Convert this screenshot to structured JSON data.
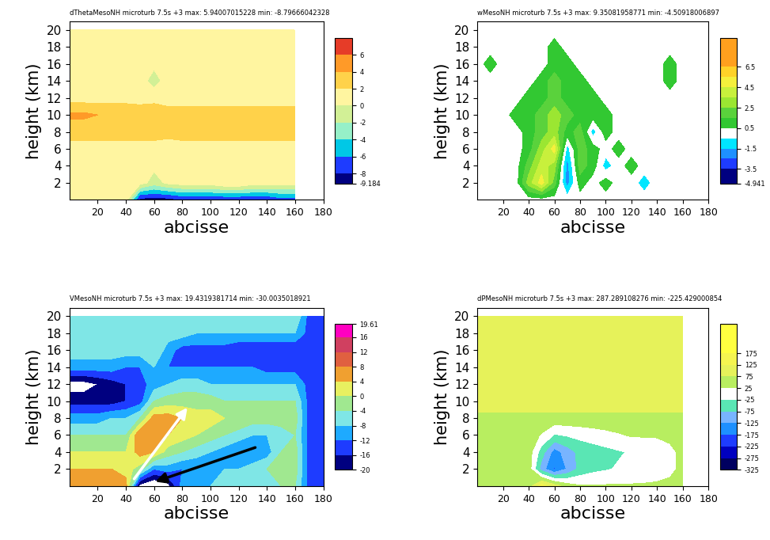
{
  "chart_data": [
    {
      "type": "contour",
      "title": "dThetaMesoNH microturb 7.5s +3 max: 5.94007015228 min: -8.79666042328",
      "x_label": "abcisse",
      "y_label": "height (km)",
      "x": [
        0,
        10,
        20,
        30,
        40,
        50,
        60,
        70,
        80,
        90,
        100,
        110,
        120,
        130,
        140,
        150,
        160,
        170,
        180
      ],
      "y": [
        0,
        2,
        4,
        6,
        8,
        10,
        12,
        14,
        16,
        18,
        20
      ],
      "cells": [
        [
          1,
          1,
          1,
          1,
          1,
          -9,
          -9,
          -9,
          -8,
          -8,
          -8,
          -8,
          -8,
          -8,
          -8,
          -7,
          -7,
          null,
          null
        ],
        [
          1,
          1,
          1,
          1,
          1,
          1,
          -1,
          0.5,
          1,
          1,
          1,
          2,
          2,
          1,
          1,
          1,
          1,
          null,
          null
        ],
        [
          1,
          1,
          1,
          1,
          1,
          1,
          0.5,
          0.5,
          0.5,
          1,
          1,
          1,
          1,
          1,
          1,
          1,
          1,
          null,
          null
        ],
        [
          1.5,
          1.5,
          1.5,
          1.5,
          1.5,
          1.5,
          1,
          0.5,
          1,
          1,
          1,
          1,
          1,
          1,
          1,
          1,
          1,
          null,
          null
        ],
        [
          2.5,
          2.5,
          2.5,
          2.5,
          2.5,
          2.5,
          3,
          3,
          3,
          3,
          3,
          3,
          3,
          3,
          3,
          3,
          3,
          null,
          null
        ],
        [
          4.5,
          4.5,
          4,
          4,
          4,
          3.5,
          3,
          3,
          3,
          3,
          3,
          3,
          3,
          3,
          3,
          3,
          3,
          null,
          null
        ],
        [
          1,
          1,
          1,
          1,
          1,
          1,
          1.5,
          1,
          1,
          1,
          1,
          1,
          1,
          1,
          1,
          1,
          1,
          null,
          null
        ],
        [
          1,
          1,
          0.5,
          1,
          1,
          1,
          -1,
          1,
          1,
          1,
          1,
          1,
          0.5,
          0.5,
          1,
          1,
          1,
          null,
          null
        ],
        [
          0.5,
          0.5,
          0.5,
          0.5,
          0.5,
          0.5,
          0.5,
          1,
          0.5,
          0.5,
          0.5,
          0.5,
          0.5,
          0.5,
          0.5,
          0.5,
          0.5,
          null,
          null
        ],
        [
          0.5,
          0.5,
          0.5,
          0.5,
          0.5,
          0.5,
          0.5,
          0.5,
          0.5,
          0.5,
          0.5,
          0.5,
          0.5,
          0.5,
          0.5,
          0.5,
          0.5,
          null,
          null
        ],
        [
          0.5,
          0.5,
          0.5,
          0.5,
          0.5,
          0.5,
          0.5,
          0.5,
          0.5,
          0.5,
          0.5,
          0.5,
          0.5,
          0.5,
          0.5,
          0.5,
          0.5,
          null,
          null
        ]
      ],
      "xlim": [
        0,
        180
      ],
      "ylim": [
        0,
        21
      ],
      "xticks": [
        20,
        40,
        60,
        80,
        100,
        120,
        140,
        160,
        180
      ],
      "yticks": [
        2,
        4,
        6,
        8,
        10,
        12,
        14,
        16,
        18,
        20
      ],
      "levels": [
        -9.184,
        -8,
        -6,
        -4,
        -2,
        0,
        2,
        4,
        6,
        8
      ],
      "colors": [
        "#000080",
        "#1e3cff",
        "#00c8e6",
        "#96f0c8",
        "#d2f096",
        "#fff5a0",
        "#ffd24a",
        "#ff9a28",
        "#e63c28"
      ],
      "colorbar_ticks": [
        -9.184,
        -8,
        -6,
        -4,
        -2,
        0,
        2,
        4,
        6
      ]
    },
    {
      "type": "contour",
      "title": "wMesoNH microturb 7.5s +3 max: 9.35081958771 min: -4.50918006897",
      "x_label": "abcisse",
      "y_label": "height (km)",
      "x": [
        0,
        10,
        20,
        30,
        40,
        50,
        60,
        70,
        80,
        90,
        100,
        110,
        120,
        130,
        140,
        150,
        160,
        170,
        180
      ],
      "y": [
        0,
        2,
        4,
        6,
        8,
        10,
        12,
        14,
        16,
        18,
        20
      ],
      "cells": [
        [
          0,
          0,
          0,
          0,
          0,
          0,
          0,
          0,
          0,
          0,
          0,
          0,
          0,
          0,
          0,
          0,
          0,
          null,
          null
        ],
        [
          0,
          0,
          0,
          0,
          3,
          5,
          2,
          -2,
          1,
          0,
          1,
          0,
          0,
          -1,
          0,
          0,
          0,
          null,
          null
        ],
        [
          0,
          0,
          0,
          0,
          2,
          4,
          3,
          -2,
          2,
          1,
          -1,
          0,
          1,
          0,
          0,
          0,
          0,
          null,
          null
        ],
        [
          0,
          0,
          0,
          0,
          1,
          3,
          5,
          -1,
          2,
          1,
          0,
          1,
          0,
          0,
          0,
          0,
          0,
          null,
          null
        ],
        [
          0,
          0,
          0,
          0,
          1,
          2,
          3,
          1,
          2,
          -1,
          1,
          0,
          0,
          0,
          0,
          0,
          0,
          null,
          null
        ],
        [
          0,
          0,
          0,
          1,
          1,
          2,
          3,
          2,
          1,
          1,
          1,
          0,
          0,
          0,
          0,
          0,
          0,
          null,
          null
        ],
        [
          0,
          0,
          0,
          0,
          1,
          1,
          2,
          1,
          1,
          1,
          0,
          0,
          0,
          0,
          0,
          0,
          0,
          null,
          null
        ],
        [
          0,
          0,
          0,
          0,
          0,
          1,
          2,
          1,
          1,
          0,
          0,
          0,
          0,
          0,
          0,
          1,
          0,
          null,
          null
        ],
        [
          0,
          1,
          0,
          0,
          0,
          0,
          1,
          1,
          0,
          0,
          0,
          0,
          0,
          0,
          0,
          1,
          0,
          null,
          null
        ],
        [
          0,
          0,
          0,
          0,
          0,
          0,
          1,
          0,
          0,
          0,
          0,
          0,
          0,
          0,
          0,
          0,
          0,
          null,
          null
        ],
        [
          0,
          0,
          0,
          0,
          0,
          0,
          0,
          0,
          0,
          0,
          0,
          0,
          0,
          0,
          0,
          0,
          0,
          null,
          null
        ]
      ],
      "xlim": [
        0,
        180
      ],
      "ylim": [
        0,
        21
      ],
      "xticks": [
        20,
        40,
        60,
        80,
        100,
        120,
        140,
        160,
        180
      ],
      "yticks": [
        2,
        4,
        6,
        8,
        10,
        12,
        14,
        16,
        18,
        20
      ],
      "levels": [
        -4.941,
        -3.5,
        -2.5,
        -1.5,
        -0.5,
        0.5,
        1.5,
        2.5,
        3.5,
        4.5,
        5.5,
        6.5,
        9.35
      ],
      "colors": [
        "#000080",
        "#1e3cff",
        "#1e90ff",
        "#00e6ff",
        "#ffffff",
        "#32c832",
        "#5ad23c",
        "#9be632",
        "#c8f03c",
        "#f5f03c",
        "#ffd228",
        "#ffa01e"
      ],
      "colorbar_ticks": [
        -4.941,
        -3.5,
        -1.5,
        0.5,
        2.5,
        4.5,
        6.5
      ]
    },
    {
      "type": "contour",
      "title": "VMesoNH microturb 7.5s +3 max: 19.4319381714 min: -30.0035018921",
      "x_label": "abcisse",
      "y_label": "height (km)",
      "x": [
        0,
        10,
        20,
        30,
        40,
        50,
        60,
        70,
        80,
        90,
        100,
        110,
        120,
        130,
        140,
        150,
        160,
        170,
        180
      ],
      "y": [
        0,
        2,
        4,
        6,
        8,
        10,
        12,
        14,
        16,
        18,
        20
      ],
      "cells": [
        [
          6,
          6,
          6,
          6,
          6,
          -22,
          -25,
          -22,
          -10,
          -8,
          -8,
          -6,
          -6,
          -6,
          -4,
          -4,
          -4,
          -14,
          -14
        ],
        [
          4,
          4,
          4,
          4,
          2,
          -2,
          -12,
          -10,
          -12,
          -12,
          -12,
          -8,
          -8,
          -6,
          -4,
          -2,
          -2,
          -14,
          -14
        ],
        [
          0,
          0,
          0,
          0,
          0,
          6,
          4,
          -2,
          -4,
          -6,
          -8,
          -10,
          -12,
          -12,
          -10,
          -4,
          -2,
          -14,
          -14
        ],
        [
          -4,
          -4,
          -4,
          -4,
          -4,
          8,
          6,
          4,
          2,
          0,
          -2,
          -4,
          -6,
          -8,
          -8,
          -6,
          -4,
          -14,
          -14
        ],
        [
          -10,
          -10,
          -10,
          -8,
          -8,
          -4,
          6,
          6,
          4,
          2,
          2,
          0,
          0,
          -2,
          -2,
          -2,
          -2,
          -14,
          -14
        ],
        [
          -18,
          -18,
          -18,
          -18,
          -16,
          -14,
          -4,
          -2,
          -2,
          -2,
          -2,
          -4,
          -4,
          -4,
          -4,
          -4,
          -4,
          -14,
          -14
        ],
        [
          -22,
          -22,
          -20,
          -18,
          -16,
          -14,
          -10,
          -8,
          -6,
          -6,
          -8,
          -8,
          -8,
          -8,
          -8,
          -8,
          -8,
          -14,
          -14
        ],
        [
          -10,
          -10,
          -10,
          -10,
          -12,
          -12,
          -8,
          -12,
          -12,
          -12,
          -12,
          -12,
          -12,
          -12,
          -14,
          -14,
          -14,
          -14,
          -14
        ],
        [
          -6,
          -6,
          -6,
          -6,
          -6,
          -6,
          -4,
          -10,
          -14,
          -14,
          -14,
          -14,
          -16,
          -16,
          -16,
          -16,
          -16,
          -14,
          -14
        ],
        [
          -4,
          -4,
          -4,
          -4,
          -4,
          -4,
          -4,
          -6,
          -6,
          -8,
          -8,
          -8,
          -8,
          -8,
          -8,
          -8,
          -8,
          -14,
          -14
        ],
        [
          -4,
          -4,
          -4,
          -4,
          -4,
          -4,
          -4,
          -4,
          -4,
          -4,
          -4,
          -4,
          -4,
          -4,
          -4,
          -4,
          -4,
          -14,
          -14
        ]
      ],
      "xlim": [
        0,
        180
      ],
      "ylim": [
        0,
        21
      ],
      "xticks": [
        20,
        40,
        60,
        80,
        100,
        120,
        140,
        160,
        180
      ],
      "yticks": [
        2,
        4,
        6,
        8,
        10,
        12,
        14,
        16,
        18,
        20
      ],
      "levels": [
        -20,
        -16,
        -12,
        -8,
        -4,
        0,
        4,
        8,
        12,
        16,
        19.61
      ],
      "colors": [
        "#000080",
        "#1e3cff",
        "#1eaaff",
        "#7fe6e6",
        "#a0e890",
        "#e8f060",
        "#f0a030",
        "#e06040",
        "#d04060",
        "#ff00c0"
      ],
      "colorbar_ticks": [
        -20,
        -16,
        -12,
        -8,
        -4,
        0,
        4,
        8,
        12,
        16,
        19.61
      ]
    },
    {
      "type": "contour",
      "title": "dPMesoNH microturb 7.5s +3 max: 287.289108276 min: -225.429000854",
      "x_label": "abcisse",
      "y_label": "height (km)",
      "x": [
        0,
        10,
        20,
        30,
        40,
        50,
        60,
        70,
        80,
        90,
        100,
        110,
        120,
        130,
        140,
        150,
        160,
        170,
        180
      ],
      "y": [
        0,
        2,
        4,
        6,
        8,
        10,
        12,
        14,
        16,
        18,
        20
      ],
      "cells": [
        [
          50,
          50,
          50,
          50,
          50,
          150,
          100,
          50,
          30,
          30,
          30,
          30,
          30,
          30,
          30,
          30,
          30,
          null,
          null
        ],
        [
          50,
          50,
          50,
          50,
          50,
          -100,
          -180,
          -120,
          -60,
          -40,
          -30,
          -20,
          -10,
          0,
          10,
          20,
          30,
          null,
          null
        ],
        [
          50,
          50,
          50,
          50,
          50,
          -50,
          -150,
          -100,
          -60,
          -50,
          -40,
          -30,
          -20,
          -10,
          0,
          20,
          30,
          null,
          null
        ],
        [
          50,
          50,
          50,
          50,
          50,
          20,
          -30,
          -20,
          -10,
          0,
          10,
          20,
          30,
          30,
          30,
          30,
          30,
          null,
          null
        ],
        [
          60,
          60,
          60,
          60,
          60,
          60,
          60,
          60,
          60,
          60,
          60,
          60,
          60,
          60,
          60,
          60,
          60,
          null,
          null
        ],
        [
          100,
          100,
          100,
          100,
          100,
          100,
          100,
          100,
          100,
          100,
          100,
          100,
          100,
          100,
          100,
          100,
          100,
          null,
          null
        ],
        [
          100,
          100,
          100,
          100,
          100,
          100,
          100,
          100,
          100,
          100,
          100,
          100,
          100,
          100,
          100,
          100,
          100,
          null,
          null
        ],
        [
          80,
          80,
          80,
          80,
          80,
          80,
          80,
          80,
          80,
          80,
          80,
          80,
          80,
          80,
          80,
          80,
          80,
          null,
          null
        ],
        [
          80,
          80,
          80,
          80,
          80,
          80,
          80,
          80,
          80,
          80,
          80,
          80,
          80,
          80,
          80,
          80,
          80,
          null,
          null
        ],
        [
          80,
          80,
          80,
          80,
          80,
          80,
          80,
          80,
          80,
          80,
          80,
          80,
          80,
          80,
          80,
          80,
          80,
          null,
          null
        ],
        [
          80,
          80,
          80,
          80,
          80,
          80,
          80,
          80,
          80,
          80,
          80,
          80,
          80,
          80,
          80,
          80,
          80,
          null,
          null
        ]
      ],
      "xlim": [
        0,
        180
      ],
      "ylim": [
        0,
        21
      ],
      "xticks": [
        20,
        40,
        60,
        80,
        100,
        120,
        140,
        160,
        180
      ],
      "yticks": [
        2,
        4,
        6,
        8,
        10,
        12,
        14,
        16,
        18,
        20
      ],
      "levels": [
        -325,
        -275,
        -225,
        -175,
        -125,
        -75,
        -25,
        25,
        75,
        125,
        175,
        300
      ],
      "colors": [
        "#000060",
        "#0000c0",
        "#1e3cff",
        "#1e90ff",
        "#78b4ff",
        "#5ae6b4",
        "#ffffff",
        "#b8ee60",
        "#e6f25a",
        "#f5f550",
        "#ffff40"
      ],
      "colorbar_ticks": [
        -325,
        -275,
        -225,
        -175,
        -125,
        -75,
        -25,
        25,
        75,
        125,
        175
      ]
    }
  ]
}
